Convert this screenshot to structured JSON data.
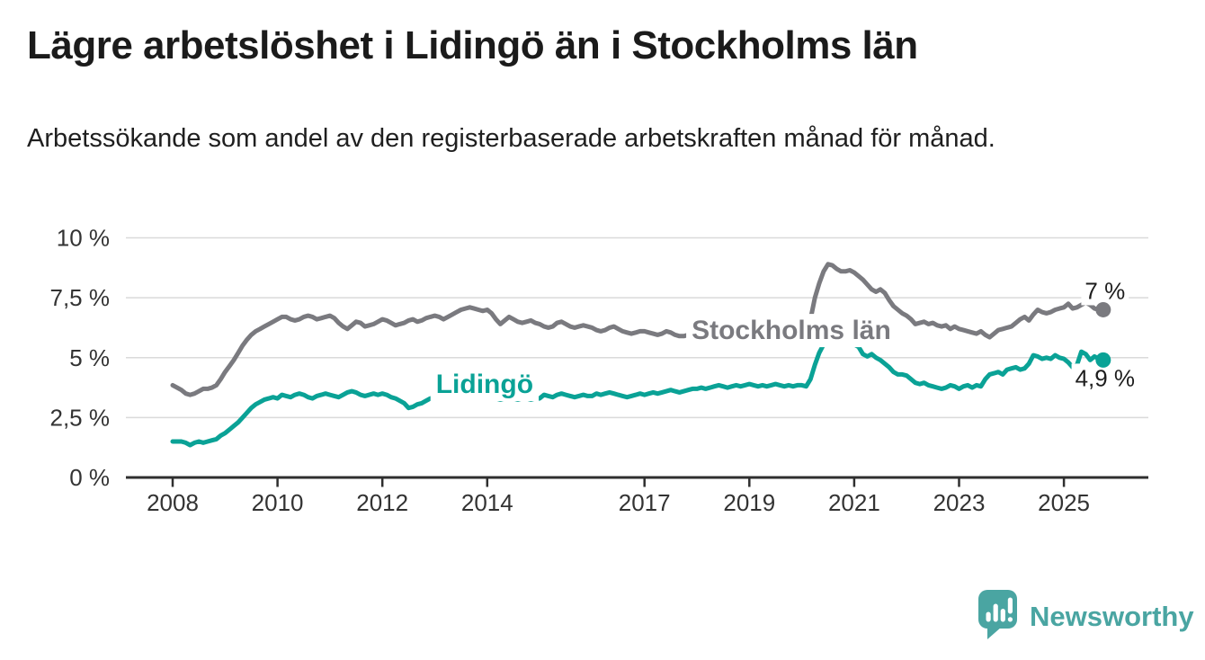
{
  "header": {
    "title": "Lägre arbetslöshet i Lidingö än i Stockholms län",
    "subtitle": "Arbetssökande som andel av den registerbaserade arbetskraften månad för månad."
  },
  "branding": {
    "logo_text": "Newsworthy",
    "logo_color": "#4aa5a2",
    "logo_icon": "bar-chart-speech-bubble-icon"
  },
  "chart_data": {
    "type": "line",
    "title": "Lägre arbetslöshet i Lidingö än i Stockholms län",
    "subtitle": "Arbetssökande som andel av den registerbaserade arbetskraften månad för månad.",
    "unit": "%",
    "grid": true,
    "legend": "inline-labels",
    "x_start": {
      "year": 2008,
      "month": 1
    },
    "x_interval": "monthly",
    "x_tick_years": [
      2008,
      2010,
      2012,
      2014,
      2017,
      2019,
      2021,
      2023,
      2025
    ],
    "y_ticks": [
      {
        "value": 0,
        "label": "0 %"
      },
      {
        "value": 2.5,
        "label": "2,5 %"
      },
      {
        "value": 5,
        "label": "5 %"
      },
      {
        "value": 7.5,
        "label": "7,5 %"
      },
      {
        "value": 10,
        "label": "10 %"
      }
    ],
    "ylim": [
      0,
      10.3
    ],
    "series": [
      {
        "name": "Stockholms län",
        "color": "#7a7a7f",
        "end_label": "7 %",
        "end_value": 7.0,
        "values": [
          3.85,
          3.75,
          3.65,
          3.5,
          3.45,
          3.5,
          3.6,
          3.7,
          3.7,
          3.75,
          3.85,
          4.1,
          4.4,
          4.65,
          4.9,
          5.2,
          5.5,
          5.75,
          5.95,
          6.1,
          6.2,
          6.3,
          6.4,
          6.5,
          6.6,
          6.7,
          6.7,
          6.6,
          6.55,
          6.6,
          6.7,
          6.75,
          6.7,
          6.6,
          6.65,
          6.7,
          6.75,
          6.65,
          6.45,
          6.3,
          6.2,
          6.35,
          6.5,
          6.45,
          6.3,
          6.35,
          6.4,
          6.5,
          6.6,
          6.55,
          6.45,
          6.35,
          6.4,
          6.45,
          6.55,
          6.6,
          6.5,
          6.55,
          6.65,
          6.7,
          6.75,
          6.7,
          6.6,
          6.7,
          6.8,
          6.9,
          7.0,
          7.05,
          7.1,
          7.05,
          7.0,
          6.95,
          7.0,
          6.85,
          6.6,
          6.4,
          6.55,
          6.7,
          6.6,
          6.5,
          6.45,
          6.5,
          6.55,
          6.45,
          6.4,
          6.3,
          6.25,
          6.3,
          6.45,
          6.5,
          6.4,
          6.3,
          6.25,
          6.3,
          6.35,
          6.3,
          6.25,
          6.15,
          6.1,
          6.15,
          6.25,
          6.3,
          6.2,
          6.1,
          6.05,
          6.0,
          6.05,
          6.1,
          6.1,
          6.05,
          6.0,
          5.95,
          6.0,
          6.1,
          6.05,
          5.95,
          5.9,
          5.9,
          5.95,
          6.0,
          6.0,
          5.95,
          5.9,
          5.85,
          5.9,
          6.0,
          6.05,
          5.95,
          5.85,
          5.9,
          5.95,
          6.0,
          6.0,
          5.95,
          5.9,
          5.95,
          6.05,
          6.15,
          6.2,
          6.1,
          6.05,
          6.1,
          6.15,
          6.2,
          6.2,
          6.2,
          6.6,
          7.5,
          8.1,
          8.6,
          8.9,
          8.85,
          8.7,
          8.6,
          8.6,
          8.65,
          8.55,
          8.4,
          8.25,
          8.05,
          7.85,
          7.75,
          7.85,
          7.7,
          7.4,
          7.15,
          7.0,
          6.85,
          6.75,
          6.6,
          6.4,
          6.45,
          6.5,
          6.4,
          6.45,
          6.35,
          6.3,
          6.35,
          6.2,
          6.3,
          6.2,
          6.15,
          6.1,
          6.05,
          6.0,
          6.1,
          5.95,
          5.85,
          6.0,
          6.15,
          6.2,
          6.25,
          6.3,
          6.45,
          6.6,
          6.7,
          6.55,
          6.8,
          7.0,
          6.9,
          6.85,
          6.9,
          7.0,
          7.05,
          7.1,
          7.25,
          7.05,
          7.1,
          7.2,
          7.3,
          7.2,
          7.05,
          7.0,
          7.0
        ]
      },
      {
        "name": "Lidingö",
        "color": "#0aa296",
        "end_label": "4,9 %",
        "end_value": 4.9,
        "values": [
          1.5,
          1.5,
          1.5,
          1.45,
          1.35,
          1.45,
          1.5,
          1.45,
          1.5,
          1.55,
          1.6,
          1.75,
          1.85,
          2.0,
          2.15,
          2.3,
          2.5,
          2.7,
          2.9,
          3.05,
          3.15,
          3.25,
          3.3,
          3.35,
          3.3,
          3.45,
          3.4,
          3.35,
          3.45,
          3.5,
          3.45,
          3.35,
          3.3,
          3.4,
          3.45,
          3.5,
          3.45,
          3.4,
          3.35,
          3.45,
          3.55,
          3.6,
          3.55,
          3.45,
          3.4,
          3.45,
          3.5,
          3.45,
          3.5,
          3.45,
          3.35,
          3.3,
          3.2,
          3.1,
          2.9,
          2.95,
          3.05,
          3.1,
          3.2,
          3.3,
          3.35,
          3.4,
          3.45,
          3.4,
          3.35,
          3.4,
          3.45,
          3.4,
          3.35,
          3.3,
          3.35,
          3.3,
          3.3,
          3.35,
          3.3,
          3.25,
          3.3,
          3.35,
          3.3,
          3.25,
          3.3,
          3.3,
          3.25,
          3.3,
          3.3,
          3.45,
          3.4,
          3.35,
          3.45,
          3.5,
          3.45,
          3.4,
          3.35,
          3.4,
          3.45,
          3.4,
          3.4,
          3.5,
          3.45,
          3.5,
          3.55,
          3.5,
          3.45,
          3.4,
          3.35,
          3.4,
          3.45,
          3.5,
          3.45,
          3.5,
          3.55,
          3.5,
          3.55,
          3.6,
          3.65,
          3.6,
          3.55,
          3.6,
          3.65,
          3.7,
          3.7,
          3.75,
          3.7,
          3.75,
          3.8,
          3.85,
          3.8,
          3.75,
          3.8,
          3.85,
          3.8,
          3.85,
          3.9,
          3.85,
          3.8,
          3.85,
          3.8,
          3.85,
          3.9,
          3.85,
          3.8,
          3.85,
          3.8,
          3.85,
          3.85,
          3.8,
          4.1,
          4.7,
          5.2,
          5.55,
          5.75,
          5.7,
          5.65,
          5.7,
          5.6,
          5.65,
          5.55,
          5.45,
          5.15,
          5.05,
          5.15,
          5.0,
          4.9,
          4.75,
          4.6,
          4.4,
          4.3,
          4.3,
          4.25,
          4.1,
          3.95,
          3.9,
          3.95,
          3.85,
          3.8,
          3.75,
          3.7,
          3.75,
          3.85,
          3.8,
          3.7,
          3.8,
          3.85,
          3.75,
          3.85,
          3.8,
          4.1,
          4.3,
          4.35,
          4.4,
          4.3,
          4.5,
          4.55,
          4.6,
          4.5,
          4.55,
          4.75,
          5.1,
          5.05,
          4.95,
          5.0,
          4.95,
          5.1,
          5.0,
          4.95,
          4.8,
          4.6,
          4.7,
          5.25,
          5.15,
          4.9,
          5.05,
          4.95,
          4.9
        ]
      }
    ],
    "annotations": [
      {
        "type": "series-label",
        "series": "Stockholms län",
        "text": "Stockholms län",
        "year": 2019.8,
        "value": 6.15
      },
      {
        "type": "series-label",
        "series": "Lidingö",
        "text": "Lidingö",
        "year": 2013.95,
        "value": 3.9
      },
      {
        "type": "end-label",
        "series": "Stockholms län",
        "text": "7 %",
        "position": "above"
      },
      {
        "type": "end-label",
        "series": "Lidingö",
        "text": "4,9 %",
        "position": "below"
      }
    ]
  }
}
